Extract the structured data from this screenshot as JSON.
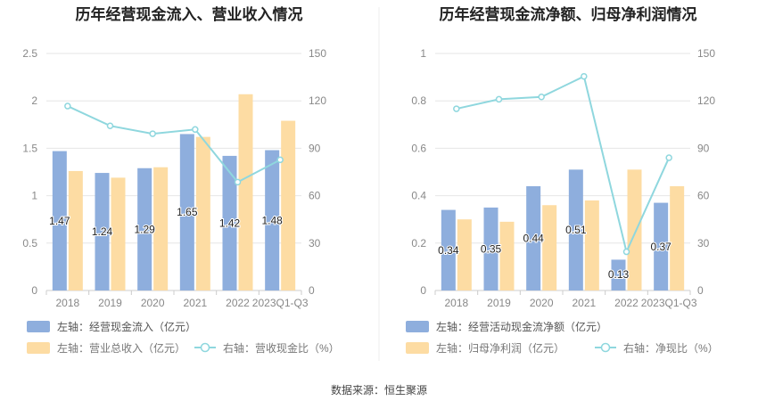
{
  "colors": {
    "bar_primary": "#8eaedd",
    "bar_secondary": "#fddca3",
    "line": "#8fd7de",
    "grid": "#e6e6e6",
    "axis": "#cccccc",
    "tick_text": "#888888"
  },
  "source_text": "数据来源：恒生聚源",
  "chart_data": [
    {
      "type": "bar",
      "title": "历年经营现金流入、营业收入情况",
      "categories": [
        "2018",
        "2019",
        "2020",
        "2021",
        "2022",
        "2023Q1-Q3"
      ],
      "series": [
        {
          "name": "左轴：经营现金流入（亿元）",
          "axis": "left",
          "kind": "bar",
          "values": [
            1.47,
            1.24,
            1.29,
            1.65,
            1.42,
            1.48
          ],
          "labels": [
            "1.47",
            "1.24",
            "1.29",
            "1.65",
            "1.42",
            "1.48"
          ]
        },
        {
          "name": "左轴：营业总收入（亿元）",
          "axis": "left",
          "kind": "bar",
          "values": [
            1.26,
            1.19,
            1.3,
            1.62,
            2.07,
            1.79
          ]
        },
        {
          "name": "右轴：营收现金比（%）",
          "axis": "right",
          "kind": "line",
          "values": [
            116.7,
            104.2,
            99.2,
            101.9,
            68.6,
            82.7
          ]
        }
      ],
      "left_axis": {
        "ticks": [
          "0",
          "0.5",
          "1",
          "1.5",
          "2",
          "2.5"
        ],
        "min": 0,
        "max": 2.5
      },
      "right_axis": {
        "ticks": [
          "0",
          "30",
          "60",
          "90",
          "120",
          "150"
        ],
        "min": 0,
        "max": 150
      }
    },
    {
      "type": "bar",
      "title": "历年经营现金流净额、归母净利润情况",
      "categories": [
        "2018",
        "2019",
        "2020",
        "2021",
        "2022",
        "2023Q1-Q3"
      ],
      "series": [
        {
          "name": "左轴：经营活动现金流净额（亿元）",
          "axis": "left",
          "kind": "bar",
          "values": [
            0.34,
            0.35,
            0.44,
            0.51,
            0.13,
            0.37
          ],
          "labels": [
            "0.34",
            "0.35",
            "0.44",
            "0.51",
            "0.13",
            "0.37"
          ]
        },
        {
          "name": "左轴：归母净利润（亿元）",
          "axis": "left",
          "kind": "bar",
          "values": [
            0.3,
            0.29,
            0.36,
            0.38,
            0.51,
            0.44
          ]
        },
        {
          "name": "右轴：净现比（%）",
          "axis": "right",
          "kind": "line",
          "values": [
            115.0,
            121.0,
            122.5,
            135.5,
            24.5,
            84.0
          ]
        }
      ],
      "left_axis": {
        "ticks": [
          "0",
          "0.2",
          "0.4",
          "0.6",
          "0.8",
          "1"
        ],
        "min": 0,
        "max": 1
      },
      "right_axis": {
        "ticks": [
          "0",
          "30",
          "60",
          "90",
          "120",
          "150"
        ],
        "min": 0,
        "max": 150
      }
    }
  ]
}
